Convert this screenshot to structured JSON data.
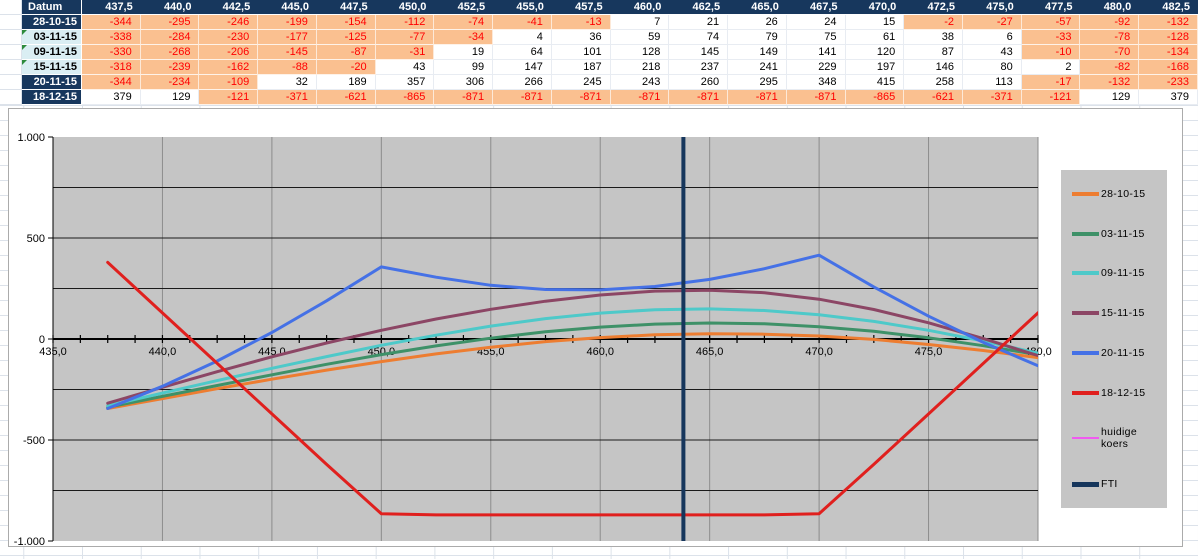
{
  "table": {
    "header_label": "Datum",
    "strike_headers": [
      "437,5",
      "440,0",
      "442,5",
      "445,0",
      "447,5",
      "450,0",
      "452,5",
      "455,0",
      "457,5",
      "460,0",
      "462,5",
      "465,0",
      "467,5",
      "470,0",
      "472,5",
      "475,0",
      "477,5",
      "480,0",
      "482,5"
    ],
    "rows": [
      {
        "date": "28-10-15",
        "label_style": "navy",
        "flag": false,
        "values": [
          -344,
          -295,
          -246,
          -199,
          -154,
          -112,
          -74,
          -41,
          -13,
          7,
          21,
          26,
          24,
          15,
          -2,
          -27,
          -57,
          -92,
          -132
        ]
      },
      {
        "date": "03-11-15",
        "label_style": "cyan",
        "flag": true,
        "values": [
          -338,
          -284,
          -230,
          -177,
          -125,
          -77,
          -34,
          4,
          36,
          59,
          74,
          79,
          75,
          61,
          38,
          6,
          -33,
          -78,
          -128
        ]
      },
      {
        "date": "09-11-15",
        "label_style": "cyan",
        "flag": true,
        "values": [
          -330,
          -268,
          -206,
          -145,
          -87,
          -31,
          19,
          64,
          101,
          128,
          145,
          149,
          141,
          120,
          87,
          43,
          -10,
          -70,
          -134
        ]
      },
      {
        "date": "15-11-15",
        "label_style": "cyan",
        "flag": true,
        "values": [
          -318,
          -239,
          -162,
          -88,
          -20,
          43,
          99,
          147,
          187,
          218,
          237,
          241,
          229,
          197,
          146,
          80,
          2,
          -82,
          -168
        ]
      },
      {
        "date": "20-11-15",
        "label_style": "navy",
        "flag": false,
        "values": [
          -344,
          -234,
          -109,
          32,
          189,
          357,
          306,
          266,
          245,
          243,
          260,
          295,
          348,
          415,
          258,
          113,
          -17,
          -132,
          -233
        ]
      },
      {
        "date": "18-12-15",
        "label_style": "navy",
        "flag": false,
        "values": [
          379,
          129,
          -121,
          -371,
          -621,
          -865,
          -871,
          -871,
          -871,
          -871,
          -871,
          -871,
          -871,
          -865,
          -621,
          -371,
          -121,
          129,
          379
        ]
      }
    ]
  },
  "chart_data": {
    "type": "line",
    "title": "",
    "x": [
      437.5,
      440,
      442.5,
      445,
      447.5,
      450,
      452.5,
      455,
      457.5,
      460,
      462.5,
      465,
      467.5,
      470,
      472.5,
      475,
      477.5,
      480,
      482.5
    ],
    "series": [
      {
        "name": "28-10-15",
        "color": "#ED7D31",
        "line_width": 3,
        "legend_thickness": 4,
        "values": [
          -344,
          -295,
          -246,
          -199,
          -154,
          -112,
          -74,
          -41,
          -13,
          7,
          21,
          26,
          24,
          15,
          -2,
          -27,
          -57,
          -92,
          -132
        ]
      },
      {
        "name": "03-11-15",
        "color": "#3E9168",
        "line_width": 3,
        "legend_thickness": 4,
        "values": [
          -338,
          -284,
          -230,
          -177,
          -125,
          -77,
          -34,
          4,
          36,
          59,
          74,
          79,
          75,
          61,
          38,
          6,
          -33,
          -78,
          -128
        ]
      },
      {
        "name": "09-11-15",
        "color": "#4EC9C9",
        "line_width": 3,
        "legend_thickness": 4,
        "values": [
          -330,
          -268,
          -206,
          -145,
          -87,
          -31,
          19,
          64,
          101,
          128,
          145,
          149,
          141,
          120,
          87,
          43,
          -10,
          -70,
          -134
        ]
      },
      {
        "name": "15-11-15",
        "color": "#8C4665",
        "line_width": 3,
        "legend_thickness": 4,
        "values": [
          -318,
          -239,
          -162,
          -88,
          -20,
          43,
          99,
          147,
          187,
          218,
          237,
          241,
          229,
          197,
          146,
          80,
          2,
          -82,
          -168
        ]
      },
      {
        "name": "20-11-15",
        "color": "#4571E6",
        "line_width": 3,
        "legend_thickness": 4,
        "values": [
          -344,
          -234,
          -109,
          32,
          189,
          357,
          306,
          266,
          245,
          243,
          260,
          295,
          348,
          415,
          258,
          113,
          -17,
          -132,
          -233
        ]
      },
      {
        "name": "18-12-15",
        "color": "#E0201E",
        "line_width": 3,
        "legend_thickness": 4,
        "values": [
          379,
          129,
          -121,
          -371,
          -621,
          -865,
          -871,
          -871,
          -871,
          -871,
          -871,
          -871,
          -871,
          -865,
          -621,
          -371,
          -121,
          129,
          379
        ]
      },
      {
        "name": "huidige koers",
        "color": "#F05AF0",
        "type": "vline",
        "x_value": 463.8,
        "line_width": 1.5,
        "legend_thickness": 2
      },
      {
        "name": "FTI",
        "color": "#16365C",
        "type": "vline",
        "x_value": 463.8,
        "line_width": 4,
        "legend_thickness": 5
      }
    ],
    "x_axis": {
      "min": 435,
      "max": 480,
      "tick_step": 1.25,
      "tick_values": [
        435,
        440,
        445,
        450,
        455,
        460,
        465,
        470,
        475,
        480
      ],
      "tick_labels": [
        "435,0",
        "440,0",
        "445,0",
        "450,0",
        "455,0",
        "460,0",
        "465,0",
        "470,0",
        "475,0",
        "480,0"
      ]
    },
    "y_axis": {
      "min": -1000,
      "max": 1000,
      "grid_step": 250,
      "tick_values": [
        1000,
        500,
        0,
        -500,
        -1000
      ],
      "tick_labels": [
        "1.000",
        "500",
        "0",
        "-500",
        "-1.000"
      ]
    },
    "grid": true,
    "legend_position": "right",
    "colors": {
      "plot_bg": "#C5C5C5",
      "legend_bg": "#C5C5C5",
      "h_grid": "#1A1A1A",
      "v_grid": "#8C8C8C",
      "axis": "#000000",
      "label_text": "#000000"
    }
  },
  "sheet_colors": {
    "header_bg": "#17375D",
    "header_text": "#FFFFFF",
    "row_label_cyan_bg": "#DAEEF3",
    "negative_cell_bg": "#FAC090",
    "negative_text": "#FF0000",
    "positive_text": "#000000",
    "flag_green": "#2E8B3D",
    "grid_line": "#DCE2EA",
    "chart_border": "#ABABAB"
  }
}
